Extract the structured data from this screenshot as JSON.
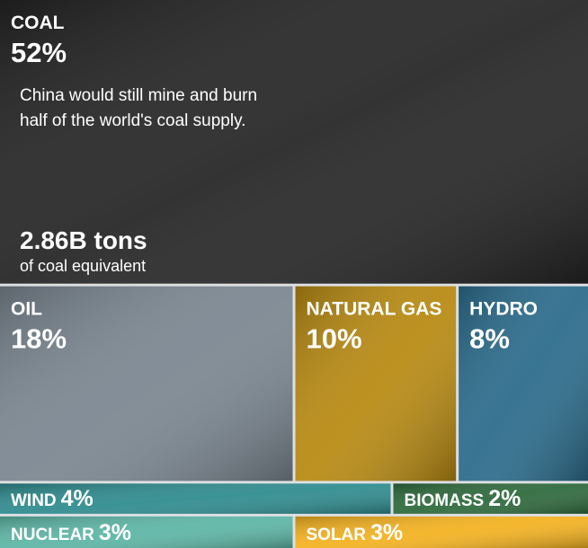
{
  "chart_data": {
    "type": "treemap",
    "categories": [
      "COAL",
      "OIL",
      "NATURAL GAS",
      "HYDRO",
      "WIND",
      "BIOMASS",
      "NUCLEAR",
      "SOLAR"
    ],
    "values": [
      52,
      18,
      10,
      8,
      4,
      2,
      3,
      3
    ],
    "value_labels": [
      "52%",
      "18%",
      "10%",
      "8%",
      "4%",
      "2%",
      "3%",
      "3%"
    ],
    "colors": [
      "#262626",
      "#7b8791",
      "#b88a12",
      "#2b6c8c",
      "#2f8c8f",
      "#2e6a3c",
      "#5db6a6",
      "#f4b220"
    ],
    "annotations": [
      "China would still mine and burn",
      "half of the world's coal supply.",
      "2.86B tons",
      "of coal equivalent"
    ]
  }
}
